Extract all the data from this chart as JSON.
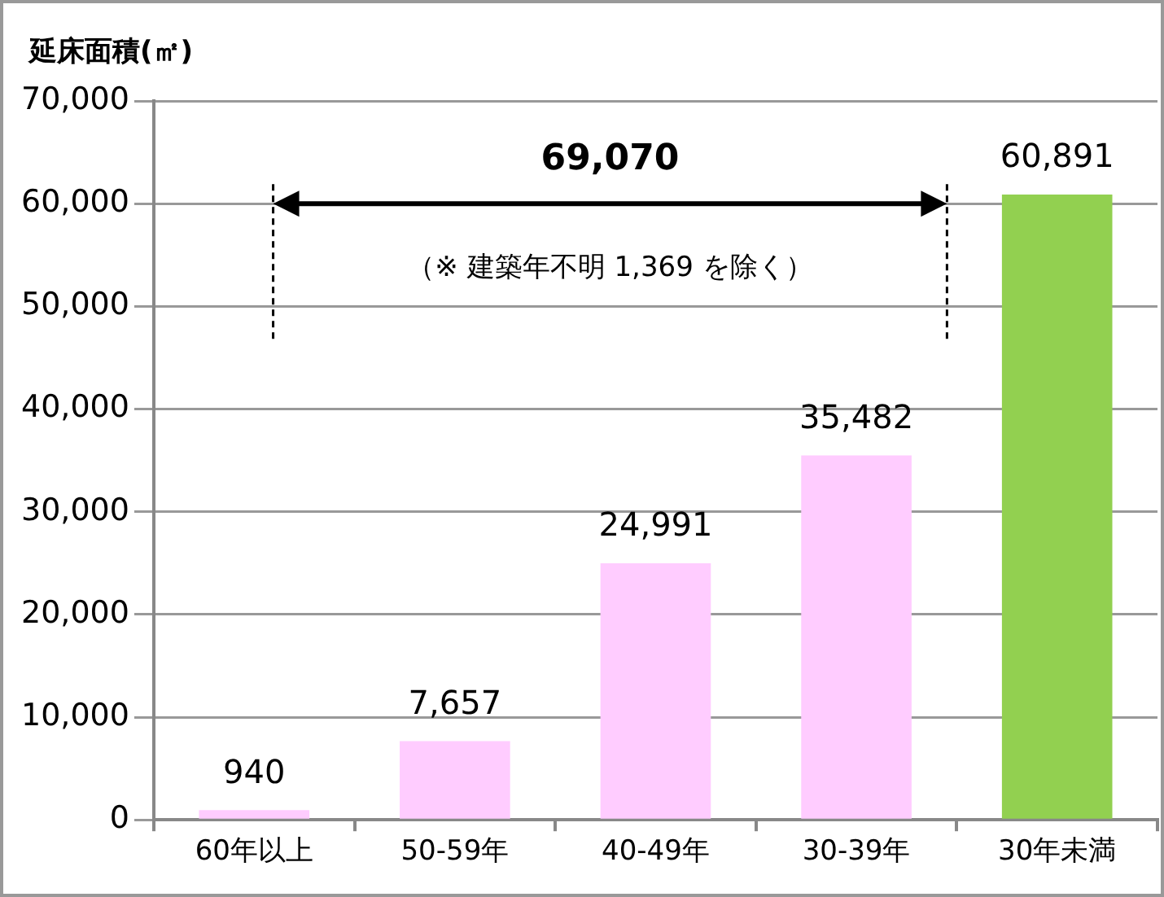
{
  "chart_data": {
    "type": "bar",
    "ylabel": "延床面積(㎡)",
    "categories": [
      "60年以上",
      "50-59年",
      "40-49年",
      "30-39年",
      "30年未満"
    ],
    "values": [
      940,
      7657,
      24991,
      35482,
      60891
    ],
    "colors": [
      "#ffccff",
      "#ffccff",
      "#ffccff",
      "#ffccff",
      "#92d050"
    ],
    "value_labels": [
      "940",
      "7,657",
      "24,991",
      "35,482",
      "60,891"
    ],
    "ylim": [
      0,
      70000
    ],
    "yticks": [
      {
        "value": 0,
        "label": "0"
      },
      {
        "value": 10000,
        "label": "10,000"
      },
      {
        "value": 20000,
        "label": "20,000"
      },
      {
        "value": 30000,
        "label": "30,000"
      },
      {
        "value": 40000,
        "label": "40,000"
      },
      {
        "value": 50000,
        "label": "50,000"
      },
      {
        "value": 60000,
        "label": "60,000"
      },
      {
        "value": 70000,
        "label": "70,000"
      }
    ],
    "grid": "y",
    "legend": false,
    "annotations": [
      "69,070",
      "（※ 建築年不明 1,369 を除く）"
    ]
  }
}
